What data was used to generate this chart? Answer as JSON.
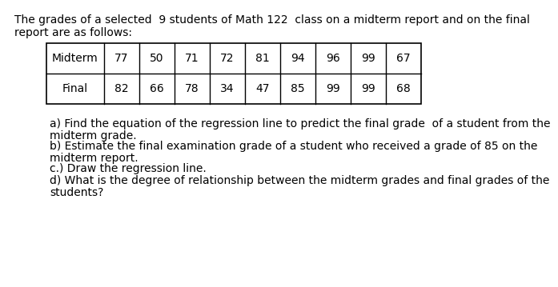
{
  "title_line1": "The grades of a selected  9 students of Math 122  class on a midterm report and on the final",
  "title_line2": "report are as follows:",
  "midterm_label": "Midterm",
  "final_label": "Final",
  "midterm_values": [
    77,
    50,
    71,
    72,
    81,
    94,
    96,
    99,
    67
  ],
  "final_values": [
    82,
    66,
    78,
    34,
    47,
    85,
    99,
    99,
    68
  ],
  "q_a_line1": "a) Find the equation of the regression line to predict the final grade  of a student from the",
  "q_a_line2": "midterm grade.",
  "q_b_line1": "b) Estimate the final examination grade of a student who received a grade of 85 on the",
  "q_b_line2": "midterm report.",
  "q_c": "c.) Draw the regression line.",
  "q_d_line1": "d) What is the degree of relationship between the midterm grades and final grades of the",
  "q_d_line2": "students?",
  "bg_color": "#ffffff",
  "text_color": "#000000",
  "font_size": 10.0
}
